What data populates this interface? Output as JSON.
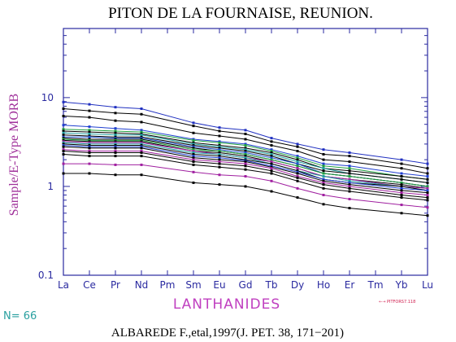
{
  "chart_data": {
    "type": "line",
    "title": "PITON DE LA FOURNAISE, REUNION.",
    "xlabel": "LANTHANIDES",
    "ylabel": "Sample/E-Type MORB",
    "y_scale": "log",
    "ylim": [
      0.1,
      60
    ],
    "y_ticks": [
      {
        "value": 0.1,
        "label": "0.1"
      },
      {
        "value": 1,
        "label": "1"
      },
      {
        "value": 10,
        "label": "10"
      }
    ],
    "categories": [
      "La",
      "Ce",
      "Pr",
      "Nd",
      "Pm",
      "Sm",
      "Eu",
      "Gd",
      "Tb",
      "Dy",
      "Ho",
      "Er",
      "Tm",
      "Yb",
      "Lu"
    ],
    "grid": false,
    "series": [
      {
        "color": "#2030c0",
        "values": [
          8.9,
          8.4,
          7.8,
          7.5,
          null,
          5.2,
          4.6,
          4.3,
          3.5,
          3.0,
          2.6,
          2.4,
          null,
          2.0,
          1.8
        ]
      },
      {
        "color": "#000000",
        "values": [
          7.5,
          7.1,
          6.7,
          6.5,
          null,
          4.8,
          4.2,
          3.9,
          3.2,
          2.8,
          2.3,
          2.2,
          null,
          1.8,
          1.6
        ]
      },
      {
        "color": "#000000",
        "values": [
          6.2,
          6.0,
          5.5,
          5.3,
          null,
          4.0,
          3.7,
          3.4,
          2.9,
          2.5,
          2.0,
          1.9,
          null,
          1.6,
          1.4
        ]
      },
      {
        "color": "#2040d0",
        "values": [
          4.9,
          4.7,
          4.5,
          4.3,
          null,
          3.4,
          3.2,
          3.0,
          2.6,
          2.2,
          1.8,
          1.7,
          null,
          1.4,
          1.3
        ]
      },
      {
        "color": "#20a040",
        "values": [
          4.4,
          4.3,
          4.2,
          4.1,
          null,
          3.3,
          3.1,
          2.9,
          2.5,
          2.1,
          1.7,
          1.6,
          null,
          1.3,
          1.2
        ]
      },
      {
        "color": "#000000",
        "values": [
          4.2,
          4.1,
          4.0,
          3.9,
          null,
          3.1,
          2.9,
          2.7,
          2.4,
          2.0,
          1.6,
          1.5,
          null,
          1.3,
          1.2
        ]
      },
      {
        "color": "#20a0a0",
        "values": [
          4.0,
          3.9,
          3.8,
          3.8,
          null,
          3.0,
          2.8,
          2.6,
          2.3,
          1.9,
          1.6,
          1.4,
          null,
          1.2,
          1.1
        ]
      },
      {
        "color": "#000000",
        "values": [
          3.8,
          3.7,
          3.6,
          3.6,
          null,
          2.9,
          2.7,
          2.5,
          2.2,
          1.8,
          1.5,
          1.4,
          null,
          1.2,
          1.1
        ]
      },
      {
        "color": "#2050d0",
        "values": [
          3.6,
          3.6,
          3.5,
          3.5,
          null,
          2.8,
          2.6,
          2.4,
          2.1,
          1.8,
          1.4,
          1.3,
          null,
          1.1,
          1.0
        ]
      },
      {
        "color": "#000000",
        "values": [
          3.5,
          3.4,
          3.4,
          3.4,
          null,
          2.7,
          2.5,
          2.3,
          2.0,
          1.7,
          1.4,
          1.3,
          null,
          1.1,
          1.0
        ]
      },
      {
        "color": "#20a040",
        "values": [
          3.4,
          3.3,
          3.3,
          3.3,
          null,
          2.6,
          2.5,
          2.3,
          2.0,
          1.7,
          1.4,
          1.3,
          null,
          1.1,
          1.0
        ]
      },
      {
        "color": "#000000",
        "values": [
          3.3,
          3.2,
          3.2,
          3.2,
          null,
          2.5,
          2.4,
          2.2,
          1.9,
          1.6,
          1.3,
          1.2,
          null,
          1.05,
          0.95
        ]
      },
      {
        "color": "#a020a0",
        "values": [
          3.2,
          3.1,
          3.1,
          3.1,
          null,
          2.5,
          2.3,
          2.1,
          1.9,
          1.6,
          1.3,
          1.2,
          null,
          1.0,
          0.95
        ]
      },
      {
        "color": "#20a0a0",
        "values": [
          3.1,
          3.0,
          3.0,
          3.0,
          null,
          2.4,
          2.3,
          2.1,
          1.8,
          1.5,
          1.3,
          1.15,
          null,
          1.0,
          0.9
        ]
      },
      {
        "color": "#000000",
        "values": [
          3.0,
          2.9,
          2.9,
          2.9,
          null,
          2.3,
          2.2,
          2.0,
          1.8,
          1.5,
          1.2,
          1.1,
          null,
          1.0,
          0.9
        ]
      },
      {
        "color": "#2040d0",
        "values": [
          2.9,
          2.8,
          2.8,
          2.8,
          null,
          2.2,
          2.1,
          1.95,
          1.7,
          1.45,
          1.2,
          1.1,
          null,
          0.95,
          0.9
        ]
      },
      {
        "color": "#000000",
        "values": [
          2.8,
          2.7,
          2.7,
          2.7,
          null,
          2.1,
          2.0,
          1.9,
          1.65,
          1.4,
          1.15,
          1.05,
          null,
          0.9,
          0.85
        ]
      },
      {
        "color": "#a020a0",
        "values": [
          2.6,
          2.5,
          2.5,
          2.5,
          null,
          2.0,
          1.9,
          1.8,
          1.6,
          1.3,
          1.1,
          1.0,
          null,
          0.85,
          0.8
        ]
      },
      {
        "color": "#000000",
        "values": [
          2.5,
          2.4,
          2.4,
          2.4,
          null,
          1.9,
          1.8,
          1.7,
          1.5,
          1.25,
          1.05,
          0.95,
          null,
          0.8,
          0.75
        ]
      },
      {
        "color": "#000000",
        "values": [
          2.3,
          2.2,
          2.2,
          2.2,
          null,
          1.75,
          1.65,
          1.55,
          1.4,
          1.15,
          0.95,
          0.88,
          null,
          0.75,
          0.7
        ]
      },
      {
        "color": "#a020a0",
        "values": [
          1.8,
          1.8,
          1.75,
          1.75,
          null,
          1.45,
          1.35,
          1.3,
          1.15,
          0.95,
          0.8,
          0.72,
          null,
          0.62,
          0.58
        ]
      },
      {
        "color": "#000000",
        "values": [
          1.4,
          1.4,
          1.35,
          1.35,
          null,
          1.1,
          1.05,
          1.0,
          0.88,
          0.75,
          0.63,
          0.57,
          null,
          0.5,
          0.47
        ]
      }
    ]
  },
  "n_label": "N=",
  "n_value": "66",
  "source_tag": "←→ PITFORS7.118",
  "footer": "ALBAREDE F.,etal,1997(J. PET. 38, 171−201)",
  "colors": {
    "axis": "#2a2aa0",
    "ylabel": "#a0329b",
    "xlabel": "#c040c0",
    "ntext": "#2aa0a0"
  }
}
